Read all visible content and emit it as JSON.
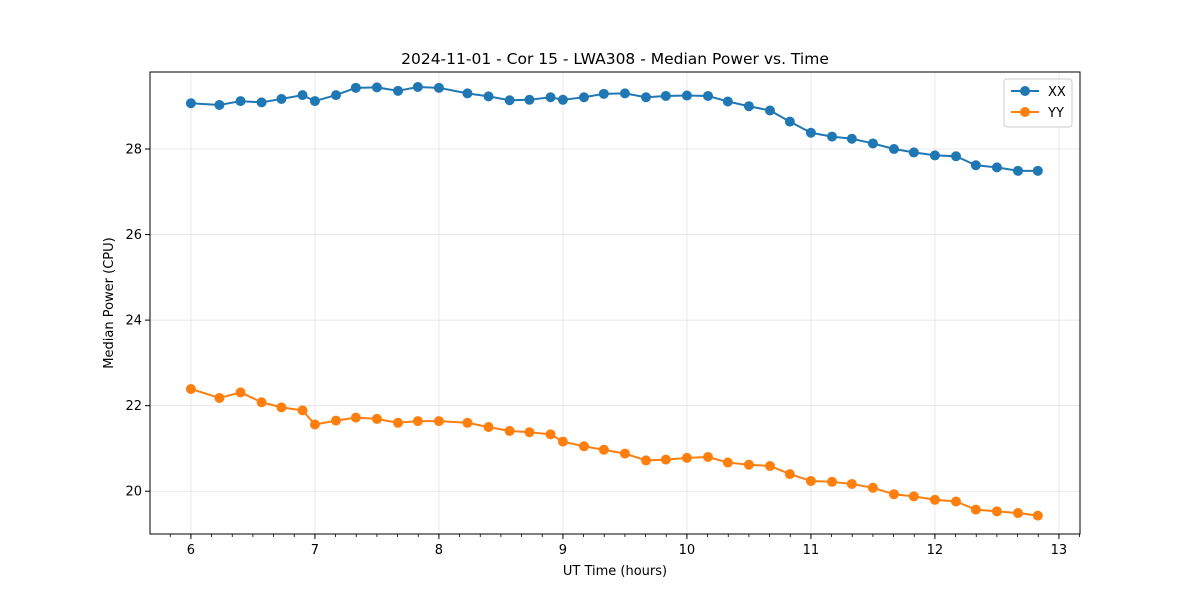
{
  "chart_data": {
    "type": "line",
    "title": "2024-11-01 - Cor 15 - LWA308 - Median Power vs. Time",
    "xlabel": "UT Time (hours)",
    "ylabel": "Median Power (CPU)",
    "xlim": [
      5.67,
      13.17
    ],
    "ylim": [
      19.0,
      29.8
    ],
    "xticks": [
      6,
      7,
      8,
      9,
      10,
      11,
      12,
      13
    ],
    "yticks": [
      20,
      22,
      24,
      26,
      28
    ],
    "grid": true,
    "legend_position": "top-right",
    "x": [
      6.0,
      6.23,
      6.4,
      6.57,
      6.73,
      6.9,
      7.0,
      7.17,
      7.33,
      7.5,
      7.67,
      7.83,
      8.0,
      8.23,
      8.4,
      8.57,
      8.73,
      8.9,
      9.0,
      9.17,
      9.33,
      9.5,
      9.67,
      9.83,
      10.0,
      10.17,
      10.33,
      10.5,
      10.67,
      10.83,
      11.0,
      11.17,
      11.33,
      11.5,
      11.67,
      11.83,
      12.0,
      12.17,
      12.33,
      12.5,
      12.67,
      12.83
    ],
    "series": [
      {
        "name": "XX",
        "color": "#1f77b4",
        "values": [
          29.07,
          29.03,
          29.12,
          29.09,
          29.17,
          29.26,
          29.12,
          29.26,
          29.43,
          29.44,
          29.36,
          29.45,
          29.43,
          29.3,
          29.23,
          29.14,
          29.15,
          29.21,
          29.15,
          29.21,
          29.29,
          29.3,
          29.21,
          29.24,
          29.25,
          29.24,
          29.11,
          29.0,
          28.9,
          28.64,
          28.38,
          28.29,
          28.24,
          28.13,
          28.0,
          27.92,
          27.85,
          27.83,
          27.62,
          27.57,
          27.49,
          27.49
        ]
      },
      {
        "name": "YY",
        "color": "#ff7f0e",
        "values": [
          22.39,
          22.18,
          22.31,
          22.08,
          21.96,
          21.89,
          21.56,
          21.65,
          21.72,
          21.69,
          21.6,
          21.64,
          21.64,
          21.6,
          21.5,
          21.41,
          21.38,
          21.33,
          21.16,
          21.05,
          20.97,
          20.88,
          20.72,
          20.74,
          20.78,
          20.8,
          20.67,
          20.62,
          20.59,
          20.4,
          20.24,
          20.22,
          20.17,
          20.08,
          19.93,
          19.88,
          19.8,
          19.76,
          19.57,
          19.53,
          19.49,
          19.43
        ]
      }
    ]
  }
}
